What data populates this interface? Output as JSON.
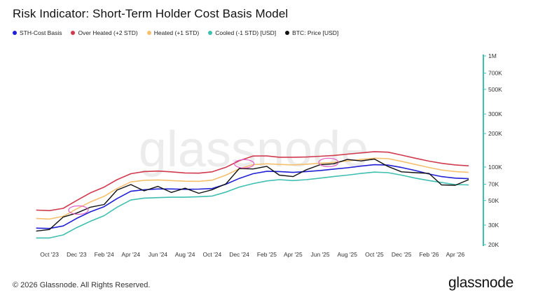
{
  "title": "Risk Indicator: Short-Term Holder Cost Basis Model",
  "footer": "© 2026 Glassnode. All Rights Reserved.",
  "brand": "glassnode",
  "watermark": "glassnode",
  "chart_data": {
    "type": "line",
    "title": "Risk Indicator: Short-Term Holder Cost Basis Model",
    "legend_position": "top-left",
    "grid": false,
    "y_scale": "log",
    "ylim": [
      20000,
      1000000
    ],
    "xlim": [
      "2023-08-20",
      "2026-05-31"
    ],
    "y_ticks": [
      {
        "value": 20000,
        "label": "20K"
      },
      {
        "value": 30000,
        "label": "30K"
      },
      {
        "value": 50000,
        "label": "50K"
      },
      {
        "value": 70000,
        "label": "70K"
      },
      {
        "value": 100000,
        "label": "100K"
      },
      {
        "value": 200000,
        "label": "200K"
      },
      {
        "value": 300000,
        "label": "300K"
      },
      {
        "value": 500000,
        "label": "500K"
      },
      {
        "value": 700000,
        "label": "700K"
      },
      {
        "value": 1000000,
        "label": "1M"
      }
    ],
    "x_ticks": [
      {
        "date": "2023-10-01",
        "label": "Oct '23"
      },
      {
        "date": "2023-12-01",
        "label": "Dec '23"
      },
      {
        "date": "2024-02-01",
        "label": "Feb '24"
      },
      {
        "date": "2024-04-01",
        "label": "Apr '24"
      },
      {
        "date": "2024-06-01",
        "label": "Jun '24"
      },
      {
        "date": "2024-08-01",
        "label": "Aug '24"
      },
      {
        "date": "2024-10-01",
        "label": "Oct '24"
      },
      {
        "date": "2024-12-01",
        "label": "Dec '24"
      },
      {
        "date": "2025-02-01",
        "label": "Feb '25"
      },
      {
        "date": "2025-04-01",
        "label": "Apr '25"
      },
      {
        "date": "2025-06-01",
        "label": "Jun '25"
      },
      {
        "date": "2025-08-01",
        "label": "Aug '25"
      },
      {
        "date": "2025-10-01",
        "label": "Oct '25"
      },
      {
        "date": "2025-12-01",
        "label": "Dec '25"
      },
      {
        "date": "2026-02-01",
        "label": "Feb '26"
      },
      {
        "date": "2026-04-01",
        "label": "Apr '26"
      }
    ],
    "x": [
      "2023-09-01",
      "2023-10-01",
      "2023-11-01",
      "2023-12-01",
      "2024-01-01",
      "2024-02-01",
      "2024-03-01",
      "2024-04-01",
      "2024-05-01",
      "2024-06-01",
      "2024-07-01",
      "2024-08-01",
      "2024-09-01",
      "2024-10-01",
      "2024-11-01",
      "2024-12-01",
      "2025-01-01",
      "2025-02-01",
      "2025-03-01",
      "2025-04-01",
      "2025-05-01",
      "2025-06-01",
      "2025-07-01",
      "2025-08-01",
      "2025-09-01",
      "2025-10-01",
      "2025-11-01",
      "2025-12-01",
      "2026-01-01",
      "2026-02-01",
      "2026-03-01",
      "2026-04-01",
      "2026-05-01"
    ],
    "series": [
      {
        "name": "STH-Cost Basis",
        "color": "#1f1fd6",
        "values": [
          28200,
          28000,
          29500,
          34500,
          39500,
          44000,
          52000,
          60500,
          62500,
          63500,
          63500,
          63000,
          63300,
          64000,
          70000,
          79000,
          87000,
          91500,
          91000,
          89500,
          91000,
          93000,
          95800,
          98500,
          102000,
          105000,
          104000,
          99000,
          93000,
          86500,
          82000,
          79500,
          78500
        ]
      },
      {
        "name": "Over Heated (+2 STD)",
        "color": "#d13a4e",
        "values": [
          41000,
          40500,
          42500,
          50000,
          58500,
          66000,
          77000,
          87000,
          91000,
          92000,
          90500,
          88500,
          88000,
          90500,
          99500,
          114000,
          125500,
          126000,
          122500,
          122500,
          123000,
          125000,
          127000,
          130500,
          134000,
          137500,
          136000,
          128000,
          120000,
          113000,
          108000,
          104500,
          102500
        ]
      },
      {
        "name": "Heated (+1 STD)",
        "color": "#f5c06e",
        "values": [
          34500,
          34000,
          36000,
          42000,
          48500,
          54500,
          64000,
          73500,
          76000,
          76500,
          75500,
          74500,
          74300,
          76200,
          84500,
          96500,
          105000,
          107000,
          105500,
          104500,
          106000,
          108000,
          110000,
          113500,
          117000,
          120000,
          119000,
          112500,
          105500,
          99000,
          94000,
          91000,
          89500
        ]
      },
      {
        "name": "Cooled (-1 STD) [USD]",
        "color": "#3fbfb0",
        "values": [
          23000,
          23000,
          24500,
          28500,
          32500,
          36500,
          43500,
          50500,
          52500,
          53000,
          53500,
          53500,
          54000,
          54800,
          59500,
          66000,
          71000,
          75000,
          77000,
          75500,
          77000,
          79500,
          82000,
          84500,
          87500,
          90000,
          89000,
          84500,
          79500,
          75500,
          72500,
          69500,
          69000
        ]
      },
      {
        "name": "BTC: Price [USD]",
        "color": "#111111",
        "values": [
          26500,
          27400,
          35500,
          38500,
          43500,
          46000,
          62000,
          69500,
          61000,
          67000,
          59000,
          64500,
          58000,
          62500,
          70500,
          97000,
          96000,
          101500,
          84500,
          82000,
          94500,
          105000,
          107000,
          117000,
          113500,
          118000,
          101000,
          90500,
          89000,
          87500,
          69000,
          68500,
          77000
        ]
      }
    ],
    "annotations": [
      {
        "type": "circle",
        "date": "2023-12-05",
        "value": 41000,
        "color": "#e35bc4"
      },
      {
        "type": "circle",
        "date": "2024-12-12",
        "value": 107000,
        "color": "#e35bc4"
      },
      {
        "type": "circle",
        "date": "2025-06-20",
        "value": 110000,
        "color": "#e35bc4"
      }
    ]
  }
}
